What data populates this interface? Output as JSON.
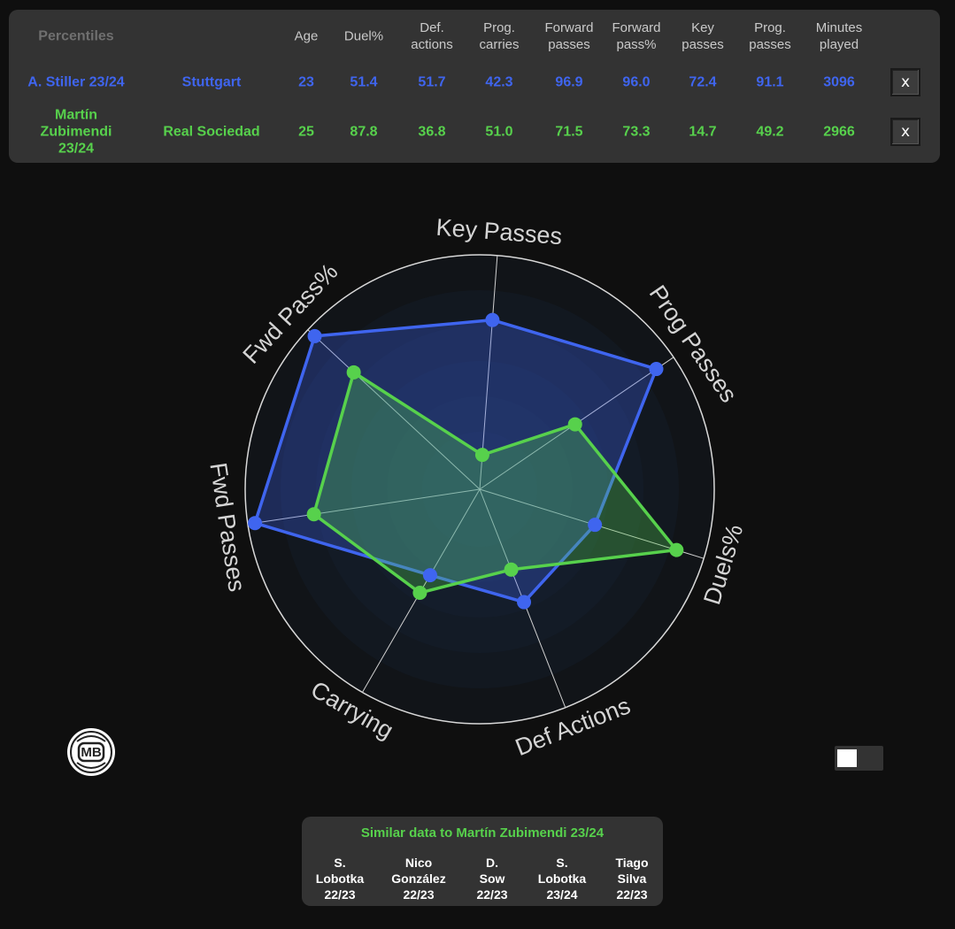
{
  "table": {
    "headers": [
      "Percentiles",
      "Age",
      "Duel%",
      "Def.\nactions",
      "Prog.\ncarries",
      "Forward\npasses",
      "Forward\npass%",
      "Key\npasses",
      "Prog.\npasses",
      "Minutes\nplayed"
    ],
    "rows": [
      {
        "player": "A. Stiller 23/24",
        "team": "Stuttgart",
        "age": "23",
        "duel": "51.4",
        "def_actions": "51.7",
        "prog_carries": "42.3",
        "fwd_passes": "96.9",
        "fwd_pass_pct": "96.0",
        "key_passes": "72.4",
        "prog_passes": "91.1",
        "minutes": "3096",
        "remove": "x",
        "color": "#3f65ef"
      },
      {
        "player": "Martín\nZubimendi\n23/24",
        "team": "Real Sociedad",
        "age": "25",
        "duel": "87.8",
        "def_actions": "36.8",
        "prog_carries": "51.0",
        "fwd_passes": "71.5",
        "fwd_pass_pct": "73.3",
        "key_passes": "14.7",
        "prog_passes": "49.2",
        "minutes": "2966",
        "remove": "x",
        "color": "#57d14c"
      }
    ]
  },
  "chart_data": {
    "type": "radar",
    "axes": [
      "Key Passes",
      "Prog Passes",
      "Duels%",
      "Def Actions",
      "Carrying",
      "Fwd Passes",
      "Fwd Pass%"
    ],
    "range": [
      0,
      100
    ],
    "series": [
      {
        "name": "A. Stiller 23/24",
        "color": "#3f65ef",
        "values": [
          72.4,
          91.1,
          51.4,
          51.7,
          42.3,
          96.9,
          96.0
        ]
      },
      {
        "name": "Martín Zubimendi 23/24",
        "color": "#57d14c",
        "values": [
          14.7,
          49.2,
          87.8,
          36.8,
          51.0,
          71.5,
          73.3
        ]
      }
    ]
  },
  "logo": {
    "text": "MB"
  },
  "toggle": {
    "state": "off"
  },
  "similar": {
    "title": "Similar data to Martín Zubimendi 23/24",
    "items": [
      "S.\nLobotka\n22/23",
      "Nico\nGonzález\n22/23",
      "D.\nSow\n22/23",
      "S.\nLobotka\n23/24",
      "Tiago\nSilva\n22/23"
    ]
  }
}
